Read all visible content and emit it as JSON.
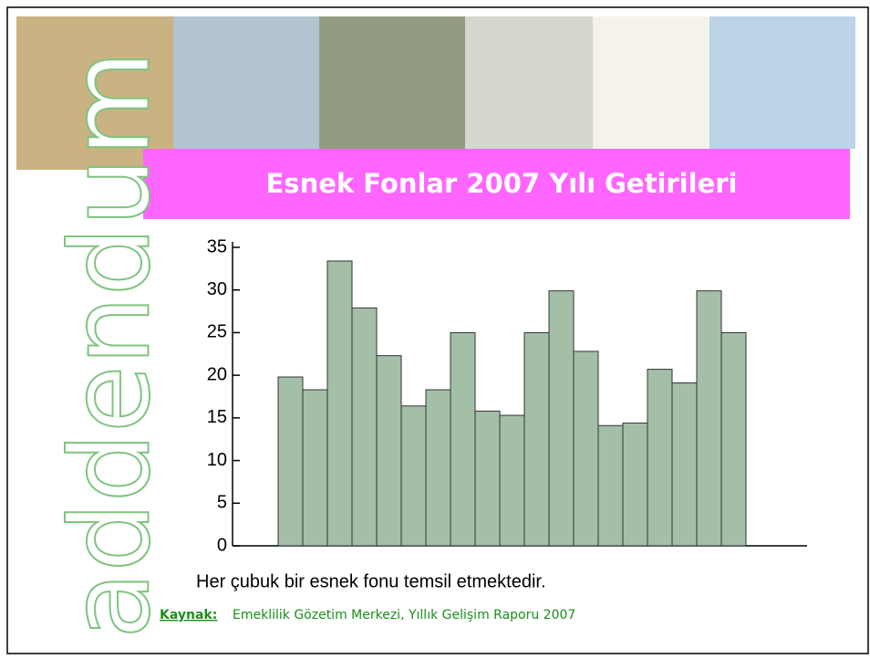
{
  "logo": "addendum",
  "chart_data": {
    "type": "bar",
    "title": "Esnek Fonlar 2007 Yılı Getirileri",
    "categories": [
      null,
      null,
      null,
      null,
      null,
      null,
      null,
      null,
      null,
      null,
      null,
      null,
      null,
      null,
      null,
      null,
      null,
      null,
      null
    ],
    "values": [
      19.8,
      18.3,
      33.4,
      27.9,
      22.3,
      16.4,
      18.3,
      25,
      15.8,
      15.3,
      25,
      29.9,
      22.8,
      14.1,
      14.4,
      20.7,
      19.1,
      29.9,
      25
    ],
    "color": "#a3bfa8",
    "ylim": [
      0,
      35
    ],
    "yticks": [
      0,
      5,
      10,
      15,
      20,
      25,
      30,
      35
    ],
    "grid": false,
    "note": "Her çubuk bir esnek fonu temsil etmektedir.",
    "source_label": "Kaynak:",
    "source": "Emeklilik Gözetim Merkezi, Yıllık Gelişim Raporu 2007"
  }
}
